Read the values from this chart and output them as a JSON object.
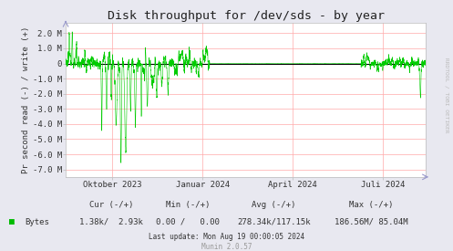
{
  "title": "Disk throughput for /dev/sds - by year",
  "ylabel": "Pr second read (-) / write (+)",
  "ylim": [
    -7500000,
    2700000
  ],
  "yticks": [
    -7000000,
    -6000000,
    -5000000,
    -4000000,
    -3000000,
    -2000000,
    -1000000,
    0,
    1000000,
    2000000
  ],
  "ytick_labels": [
    "-7.0 M",
    "-6.0 M",
    "-5.0 M",
    "-4.0 M",
    "-3.0 M",
    "-2.0 M",
    "-1.0 M",
    "0",
    "1.0 M",
    "2.0 M"
  ],
  "xtick_labels": [
    "Oktober 2023",
    "Januar 2024",
    "April 2024",
    "Juli 2024"
  ],
  "xtick_pos": [
    0.13,
    0.38,
    0.63,
    0.88
  ],
  "bg_color": "#e8e8f0",
  "plot_bg_color": "#ffffff",
  "grid_color": "#ffaaaa",
  "line_color": "#00cc00",
  "zero_line_color": "#000000",
  "legend_label": "Bytes",
  "legend_color": "#00bb00",
  "cur_label": "Cur (-/+)",
  "cur_val": "1.38k/  2.93k",
  "min_label": "Min (-/+)",
  "min_val": "0.00 /   0.00",
  "avg_label": "Avg (-/+)",
  "avg_val": "278.34k/117.15k",
  "max_label": "Max (-/+)",
  "max_val": "186.56M/ 85.04M",
  "last_update": "Last update: Mon Aug 19 00:00:05 2024",
  "munin_label": "Munin 2.0.57",
  "rrdtool_label": "RRDTOOL / TOBI OETIKER",
  "title_fontsize": 9.5,
  "axis_fontsize": 6.5,
  "tick_fontsize": 6.5,
  "legend_fontsize": 6.5,
  "note_fontsize": 5.5
}
